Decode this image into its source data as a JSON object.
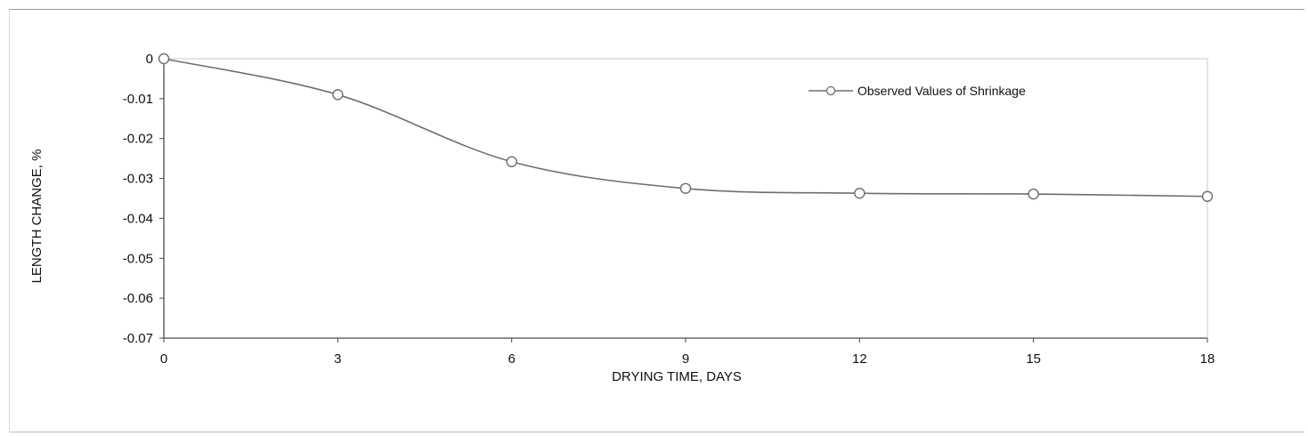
{
  "chart_data": {
    "type": "line",
    "title": "",
    "xlabel": "DRYING TIME, DAYS",
    "ylabel": "LENGTH CHANGE, %",
    "xlim": [
      0,
      18
    ],
    "ylim": [
      -0.07,
      0
    ],
    "x_ticks": [
      "0",
      "3",
      "6",
      "9",
      "12",
      "15",
      "18"
    ],
    "y_ticks": [
      "0",
      "-0.01",
      "-0.02",
      "-0.03",
      "-0.04",
      "-0.05",
      "-0.06",
      "-0.07"
    ],
    "grid": false,
    "legend_position": "top-right",
    "series": [
      {
        "name": "Observed Values of Shrinkage",
        "marker": "open-circle",
        "color": "#6e6e6e",
        "smooth": true,
        "x": [
          0,
          3,
          6,
          9,
          12,
          15,
          18
        ],
        "y": [
          0,
          -0.009,
          -0.0258,
          -0.0325,
          -0.0337,
          -0.0339,
          -0.0345
        ]
      }
    ]
  }
}
